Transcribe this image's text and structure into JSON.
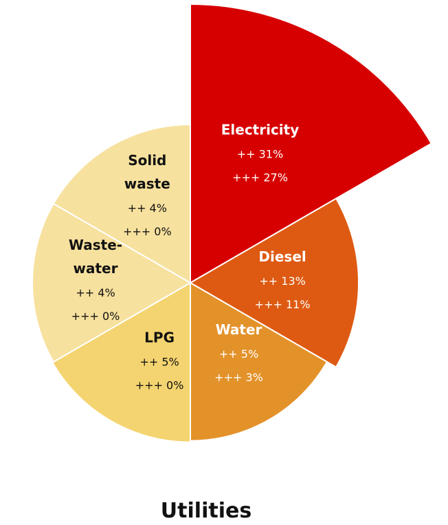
{
  "chart_data": {
    "type": "pie",
    "title": "Utilities",
    "grid": false,
    "legend": "none",
    "series": [
      {
        "name": "++",
        "values": [
          31,
          13,
          5,
          5,
          4,
          4
        ]
      },
      {
        "name": "+++",
        "values": [
          27,
          11,
          3,
          0,
          0,
          0
        ]
      }
    ],
    "segments": [
      {
        "label_lines": [
          "Electricity"
        ],
        "pp": "++ 31%",
        "ppp": "+++ 27%",
        "value_pp": 31,
        "value_ppp": 27,
        "color": "#d70000",
        "text_color": "#ffffff"
      },
      {
        "label_lines": [
          "Diesel"
        ],
        "pp": "++ 13%",
        "ppp": "+++ 11%",
        "value_pp": 13,
        "value_ppp": 11,
        "color": "#de5a12",
        "text_color": "#ffffff"
      },
      {
        "label_lines": [
          "Water"
        ],
        "pp": "++ 5%",
        "ppp": "+++ 3%",
        "value_pp": 5,
        "value_ppp": 3,
        "color": "#e3922a",
        "text_color": "#ffffff"
      },
      {
        "label_lines": [
          "LPG"
        ],
        "pp": "++ 5%",
        "ppp": "+++ 0%",
        "value_pp": 5,
        "value_ppp": 0,
        "color": "#f4d470",
        "text_color": "#111111"
      },
      {
        "label_lines": [
          "Waste-",
          "water"
        ],
        "pp": "++ 4%",
        "ppp": "+++ 0%",
        "value_pp": 4,
        "value_ppp": 0,
        "color": "#f7e19e",
        "text_color": "#111111"
      },
      {
        "label_lines": [
          "Solid",
          "waste"
        ],
        "pp": "++ 4%",
        "ppp": "+++ 0%",
        "value_pp": 4,
        "value_ppp": 0,
        "color": "#f7e19e",
        "text_color": "#111111"
      }
    ]
  }
}
